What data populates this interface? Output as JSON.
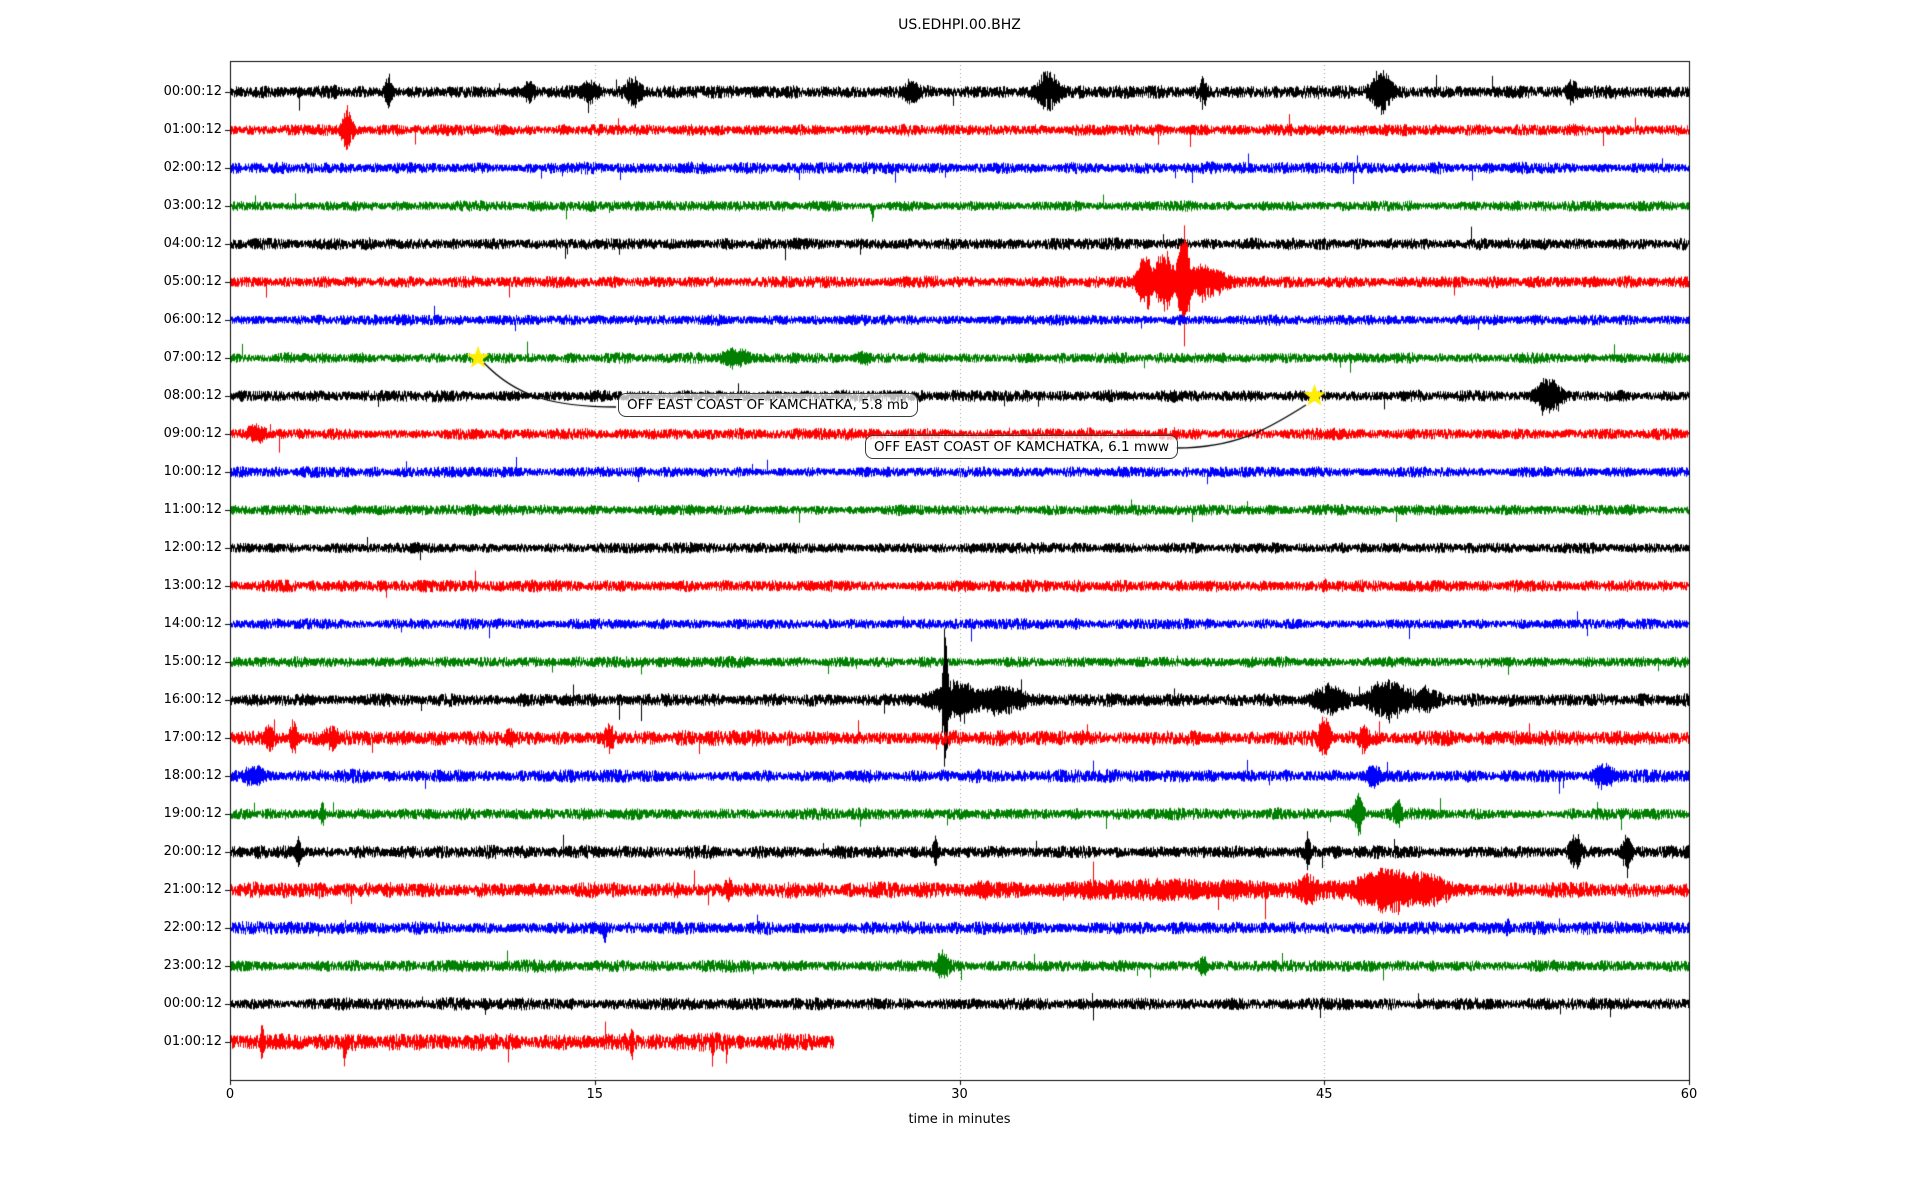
{
  "title": "US.EDHPI.00.BHZ",
  "chart_data": {
    "type": "line",
    "subtype": "seismic-dayplot-helicorder",
    "title": "US.EDHPI.00.BHZ",
    "xlabel": "time in minutes",
    "x_range_minutes": [
      0,
      60
    ],
    "x_ticks": [
      "0",
      "15",
      "30",
      "45",
      "60"
    ],
    "x_tick_values": [
      0,
      15,
      30,
      45,
      60
    ],
    "grid_minutes": [
      15,
      30,
      45
    ],
    "grid_style": "dotted-gray-vertical",
    "trace_color_cycle": [
      "#000000",
      "#ff0000",
      "#0000ff",
      "#008000"
    ],
    "rows": [
      {
        "label": "00:00:12",
        "color": "#000000",
        "amp": 5,
        "end_minute": 60,
        "events": [
          {
            "t": 6.5,
            "a": 13,
            "w": 0.15
          },
          {
            "t": 12.3,
            "a": 8,
            "w": 0.2
          },
          {
            "t": 14.8,
            "a": 7,
            "w": 0.35
          },
          {
            "t": 16.6,
            "a": 9,
            "w": 0.35
          },
          {
            "t": 28,
            "a": 7,
            "w": 0.3
          },
          {
            "t": 33.6,
            "a": 13,
            "w": 0.5
          },
          {
            "t": 40,
            "a": 9,
            "w": 0.15
          },
          {
            "t": 47.3,
            "a": 15,
            "w": 0.4
          },
          {
            "t": 55.2,
            "a": 6,
            "w": 0.2
          }
        ]
      },
      {
        "label": "01:00:12",
        "color": "#ff0000",
        "amp": 4.5,
        "end_minute": 60,
        "events": [
          {
            "t": 4.8,
            "a": 15,
            "w": 0.2
          }
        ]
      },
      {
        "label": "02:00:12",
        "color": "#0000ff",
        "amp": 4.5,
        "end_minute": 60,
        "events": []
      },
      {
        "label": "03:00:12",
        "color": "#008000",
        "amp": 4,
        "end_minute": 60,
        "events": [
          {
            "t": 26.4,
            "a": 11,
            "w": 0.07,
            "dir": -1
          }
        ]
      },
      {
        "label": "04:00:12",
        "color": "#000000",
        "amp": 4.5,
        "end_minute": 60,
        "events": []
      },
      {
        "label": "05:00:12",
        "color": "#ff0000",
        "amp": 4.5,
        "end_minute": 60,
        "events": [
          {
            "t": 37.6,
            "a": 20,
            "w": 0.3
          },
          {
            "t": 38.4,
            "a": 24,
            "w": 0.4
          },
          {
            "t": 39.2,
            "a": 44,
            "w": 0.25
          },
          {
            "t": 40,
            "a": 12,
            "w": 0.8
          }
        ]
      },
      {
        "label": "06:00:12",
        "color": "#0000ff",
        "amp": 4,
        "end_minute": 60,
        "events": []
      },
      {
        "label": "07:00:12",
        "color": "#008000",
        "amp": 4,
        "end_minute": 60,
        "events": [
          {
            "t": 20.8,
            "a": 6,
            "w": 0.6
          },
          {
            "t": 26,
            "a": 4,
            "w": 0.3
          }
        ]
      },
      {
        "label": "08:00:12",
        "color": "#000000",
        "amp": 4.5,
        "end_minute": 60,
        "events": [
          {
            "t": 54.2,
            "a": 14,
            "w": 0.5
          }
        ]
      },
      {
        "label": "09:00:12",
        "color": "#ff0000",
        "amp": 4.5,
        "end_minute": 60,
        "events": [
          {
            "t": 1,
            "a": 5,
            "w": 0.3
          }
        ]
      },
      {
        "label": "10:00:12",
        "color": "#0000ff",
        "amp": 4,
        "end_minute": 60,
        "events": []
      },
      {
        "label": "11:00:12",
        "color": "#008000",
        "amp": 4,
        "end_minute": 60,
        "events": []
      },
      {
        "label": "12:00:12",
        "color": "#000000",
        "amp": 4,
        "end_minute": 60,
        "events": []
      },
      {
        "label": "13:00:12",
        "color": "#ff0000",
        "amp": 4.5,
        "end_minute": 60,
        "events": [
          {
            "t": 45,
            "a": 5,
            "w": 0.1
          }
        ]
      },
      {
        "label": "14:00:12",
        "color": "#0000ff",
        "amp": 4,
        "end_minute": 60,
        "events": []
      },
      {
        "label": "15:00:12",
        "color": "#008000",
        "amp": 4,
        "end_minute": 60,
        "events": []
      },
      {
        "label": "16:00:12",
        "color": "#000000",
        "amp": 5,
        "end_minute": 60,
        "events": [
          {
            "t": 29.4,
            "a": 60,
            "w": 0.12
          },
          {
            "t": 29.9,
            "a": 13,
            "w": 1.0
          },
          {
            "t": 31.6,
            "a": 8,
            "w": 1.2
          },
          {
            "t": 45.2,
            "a": 9,
            "w": 0.7
          },
          {
            "t": 47.6,
            "a": 13,
            "w": 0.9
          },
          {
            "t": 49.1,
            "a": 8,
            "w": 0.5
          }
        ]
      },
      {
        "label": "17:00:12",
        "color": "#ff0000",
        "amp": 6,
        "end_minute": 60,
        "events": [
          {
            "t": 1.6,
            "a": 9,
            "w": 0.2
          },
          {
            "t": 2.6,
            "a": 11,
            "w": 0.15
          },
          {
            "t": 4.2,
            "a": 9,
            "w": 0.2
          },
          {
            "t": 11.5,
            "a": 7,
            "w": 0.15
          },
          {
            "t": 15.6,
            "a": 7,
            "w": 0.2
          },
          {
            "t": 45,
            "a": 13,
            "w": 0.25
          },
          {
            "t": 46.6,
            "a": 9,
            "w": 0.2
          }
        ]
      },
      {
        "label": "18:00:12",
        "color": "#0000ff",
        "amp": 5,
        "end_minute": 60,
        "events": [
          {
            "t": 1,
            "a": 7,
            "w": 0.4
          },
          {
            "t": 47,
            "a": 7,
            "w": 0.3
          },
          {
            "t": 56.5,
            "a": 8,
            "w": 0.4
          }
        ]
      },
      {
        "label": "19:00:12",
        "color": "#008000",
        "amp": 4.5,
        "end_minute": 60,
        "events": [
          {
            "t": 3.8,
            "a": 8,
            "w": 0.1
          },
          {
            "t": 46.4,
            "a": 15,
            "w": 0.2
          },
          {
            "t": 48,
            "a": 9,
            "w": 0.15
          }
        ]
      },
      {
        "label": "20:00:12",
        "color": "#000000",
        "amp": 5,
        "end_minute": 60,
        "events": [
          {
            "t": 2.8,
            "a": 11,
            "w": 0.12
          },
          {
            "t": 29,
            "a": 9,
            "w": 0.1
          },
          {
            "t": 44.3,
            "a": 13,
            "w": 0.1
          },
          {
            "t": 55.3,
            "a": 12,
            "w": 0.25
          },
          {
            "t": 57.4,
            "a": 10,
            "w": 0.2
          }
        ]
      },
      {
        "label": "21:00:12",
        "color": "#ff0000",
        "amp": 6,
        "end_minute": 60,
        "events": [
          {
            "t": 20.5,
            "a": 6,
            "w": 0.2
          },
          {
            "t": 31,
            "a": 6,
            "w": 0.3
          },
          {
            "t": 38,
            "a": 4,
            "w": 5
          },
          {
            "t": 44.3,
            "a": 8,
            "w": 0.5
          },
          {
            "t": 47.5,
            "a": 15,
            "w": 1.3
          },
          {
            "t": 49,
            "a": 11,
            "w": 1.1
          }
        ]
      },
      {
        "label": "22:00:12",
        "color": "#0000ff",
        "amp": 5,
        "end_minute": 60,
        "events": [
          {
            "t": 15.4,
            "a": 16,
            "w": 0.06,
            "dir": -1
          },
          {
            "t": 52.5,
            "a": 7,
            "w": 0.1
          }
        ]
      },
      {
        "label": "23:00:12",
        "color": "#008000",
        "amp": 4.5,
        "end_minute": 60,
        "events": [
          {
            "t": 29.3,
            "a": 11,
            "w": 0.25
          },
          {
            "t": 40,
            "a": 6,
            "w": 0.15
          }
        ]
      },
      {
        "label": "00:00:12",
        "color": "#000000",
        "amp": 4.5,
        "end_minute": 60,
        "events": [
          {
            "t": 56,
            "a": 5,
            "w": 0.1
          }
        ]
      },
      {
        "label": "01:00:12",
        "color": "#ff0000",
        "amp": 7,
        "end_minute": 24.8,
        "events": [
          {
            "t": 1.3,
            "a": 12,
            "w": 0.08
          },
          {
            "t": 4.7,
            "a": 24,
            "w": 0.06,
            "dir": -1
          },
          {
            "t": 16.5,
            "a": 9,
            "w": 0.08
          },
          {
            "t": 19.8,
            "a": 17,
            "w": 0.06,
            "dir": -1
          },
          {
            "t": 20.4,
            "a": 11,
            "w": 0.06,
            "dir": -1
          }
        ]
      }
    ],
    "event_markers": [
      {
        "symbol": "star",
        "color": "#ffee00",
        "row": 7,
        "minute": 10.2
      },
      {
        "symbol": "star",
        "color": "#ffee00",
        "row": 8,
        "minute": 44.6
      }
    ],
    "annotations": [
      {
        "text": "OFF EAST COAST OF KAMCHATKA, 5.8 mb",
        "marker_row": 7,
        "marker_minute": 10.2
      },
      {
        "text": "OFF EAST COAST OF KAMCHATKA, 6.1 mww",
        "marker_row": 8,
        "marker_minute": 44.6
      }
    ]
  }
}
